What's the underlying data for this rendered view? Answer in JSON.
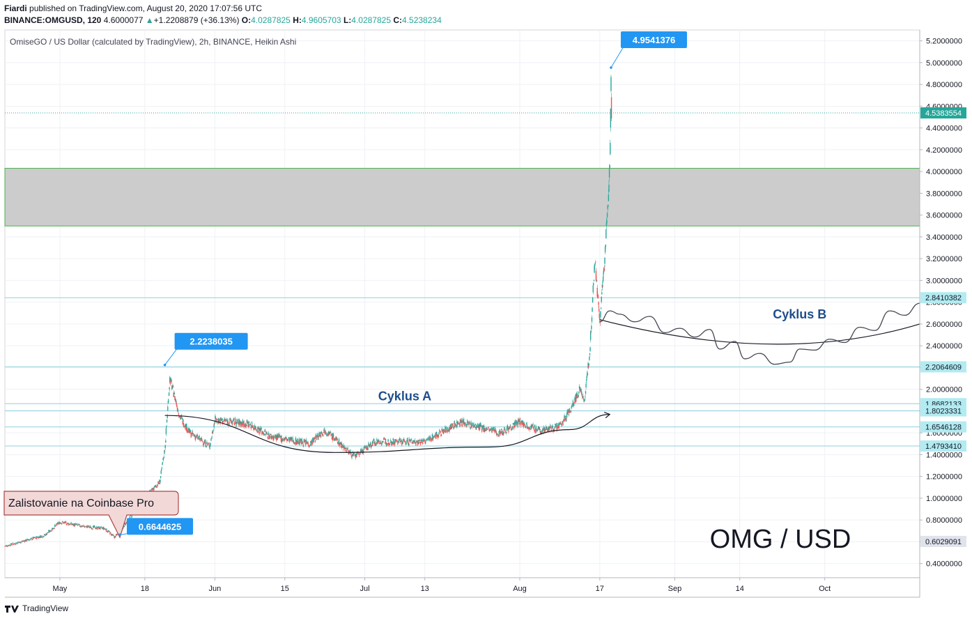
{
  "header": {
    "author": "Fiardi",
    "published_text": "published on TradingView.com, August 20, 2020 17:07:56 UTC",
    "symbol": "BINANCE:OMGUSD, 120",
    "price": "4.6000077",
    "change_arrow": "▲",
    "change": "+1.2208879 (+36.13%)",
    "o_label": "O:",
    "o_value": "4.0287825",
    "h_label": "H:",
    "h_value": "4.9605703",
    "l_label": "L:",
    "l_value": "4.0287825",
    "c_label": "C:",
    "c_value": "4.5238234"
  },
  "footer": {
    "brand": "TradingView"
  },
  "colors": {
    "up": "#26a69a",
    "down": "#ef5350",
    "callout": "#2196f3",
    "last_price": "#26a69a",
    "level_badge": "#b2ebf2",
    "zone": "#cccccc",
    "zone_border": "#4caf50",
    "curve": "#131722"
  },
  "chart_data": {
    "type": "candlestick",
    "title": "OmiseGO / US Dollar (calculated by TradingView), 2h, BINANCE, Heikin Ashi",
    "watermark": "OMG / USD",
    "y_axis": {
      "range": [
        0.27,
        5.3
      ],
      "ticks": [
        "0.4000000",
        "0.6000000",
        "0.8000000",
        "1.0000000",
        "1.2000000",
        "1.4000000",
        "1.6000000",
        "1.8000000",
        "2.0000000",
        "2.2000000",
        "2.4000000",
        "2.6000000",
        "2.8000000",
        "3.0000000",
        "3.2000000",
        "3.4000000",
        "3.6000000",
        "3.8000000",
        "4.0000000",
        "4.2000000",
        "4.4000000",
        "4.6000000",
        "4.8000000",
        "5.0000000",
        "5.2000000"
      ]
    },
    "x_axis": {
      "range": [
        "2020-04-20",
        "2020-10-20"
      ],
      "ticks": [
        {
          "date": "2020-05-01",
          "label": "May"
        },
        {
          "date": "2020-05-18",
          "label": "18"
        },
        {
          "date": "2020-06-01",
          "label": "Jun"
        },
        {
          "date": "2020-06-15",
          "label": "15"
        },
        {
          "date": "2020-07-01",
          "label": "Jul"
        },
        {
          "date": "2020-07-13",
          "label": "13"
        },
        {
          "date": "2020-08-01",
          "label": "Aug"
        },
        {
          "date": "2020-08-17",
          "label": "17"
        },
        {
          "date": "2020-09-01",
          "label": "Sep"
        },
        {
          "date": "2020-09-14",
          "label": "14"
        },
        {
          "date": "2020-10-01",
          "label": "Oct"
        }
      ]
    },
    "price_path": [
      {
        "date": "2020-04-20",
        "value": 0.56
      },
      {
        "date": "2020-04-28",
        "value": 0.66
      },
      {
        "date": "2020-05-01",
        "value": 0.78
      },
      {
        "date": "2020-05-06",
        "value": 0.74
      },
      {
        "date": "2020-05-10",
        "value": 0.72
      },
      {
        "date": "2020-05-12",
        "value": 0.64
      },
      {
        "date": "2020-05-15",
        "value": 0.82
      },
      {
        "date": "2020-05-18",
        "value": 1.0
      },
      {
        "date": "2020-05-21",
        "value": 1.15
      },
      {
        "date": "2020-05-22",
        "value": 1.45
      },
      {
        "date": "2020-05-23",
        "value": 2.1
      },
      {
        "date": "2020-05-25",
        "value": 1.75
      },
      {
        "date": "2020-05-27",
        "value": 1.6
      },
      {
        "date": "2020-05-31",
        "value": 1.48
      },
      {
        "date": "2020-06-01",
        "value": 1.72
      },
      {
        "date": "2020-06-08",
        "value": 1.68
      },
      {
        "date": "2020-06-12",
        "value": 1.57
      },
      {
        "date": "2020-06-20",
        "value": 1.5
      },
      {
        "date": "2020-06-23",
        "value": 1.63
      },
      {
        "date": "2020-06-29",
        "value": 1.38
      },
      {
        "date": "2020-07-03",
        "value": 1.52
      },
      {
        "date": "2020-07-13",
        "value": 1.52
      },
      {
        "date": "2020-07-20",
        "value": 1.7
      },
      {
        "date": "2020-07-28",
        "value": 1.6
      },
      {
        "date": "2020-08-01",
        "value": 1.7
      },
      {
        "date": "2020-08-05",
        "value": 1.62
      },
      {
        "date": "2020-08-09",
        "value": 1.66
      },
      {
        "date": "2020-08-11",
        "value": 1.8
      },
      {
        "date": "2020-08-13",
        "value": 2.0
      },
      {
        "date": "2020-08-14",
        "value": 1.9
      },
      {
        "date": "2020-08-15",
        "value": 2.35
      },
      {
        "date": "2020-08-16",
        "value": 3.2
      },
      {
        "date": "2020-08-17",
        "value": 2.6
      },
      {
        "date": "2020-08-18",
        "value": 3.2
      },
      {
        "date": "2020-08-18T12:00",
        "value": 3.6
      },
      {
        "date": "2020-08-19",
        "value": 4.05
      },
      {
        "date": "2020-08-19T06:00",
        "value": 4.95
      },
      {
        "date": "2020-08-19T08:00",
        "value": 4.54
      }
    ],
    "horizontal_levels": [
      {
        "value": 2.8410382,
        "label": "2.8410382"
      },
      {
        "value": 2.2064609,
        "label": "2.2064609"
      },
      {
        "value": 1.8682133,
        "label": "1.8682133"
      },
      {
        "value": 1.8023331,
        "label": "1.8023331"
      },
      {
        "value": 1.6546128,
        "label": "1.6546128"
      },
      {
        "value": 1.479341,
        "label": "1.4793410"
      }
    ],
    "last_price": {
      "value": 4.5383554,
      "label": "4.5383554"
    },
    "scale_marker": {
      "value": 0.6029091,
      "label": "0.6029091"
    },
    "zone": {
      "from": 3.5,
      "to": 4.03
    },
    "callouts": [
      {
        "date": "2020-05-22",
        "value": 2.2238035,
        "label": "2.2238035"
      },
      {
        "date": "2020-08-19T06:00",
        "value": 4.9541376,
        "label": "4.9541376"
      },
      {
        "date": "2020-05-13",
        "value": 0.6644625,
        "label": "0.6644625"
      }
    ],
    "annotations": [
      {
        "text": "Zalistovanie na Coinbase Pro",
        "date": "2020-05-13",
        "value": 0.64
      },
      {
        "text": "Cyklus A",
        "date": "2020-07-09",
        "value": 1.9
      },
      {
        "text": "Cyklus B",
        "date": "2020-09-26",
        "value": 2.65
      }
    ],
    "cycle_a_curve": [
      {
        "date": "2020-05-22",
        "value": 1.76
      },
      {
        "date": "2020-06-25",
        "value": 1.42
      },
      {
        "date": "2020-07-26",
        "value": 1.47
      },
      {
        "date": "2020-08-11",
        "value": 1.63
      },
      {
        "date": "2020-08-19",
        "value": 1.77
      }
    ],
    "cycle_b_curve": [
      {
        "date": "2020-08-17",
        "value": 2.64
      },
      {
        "date": "2020-09-22",
        "value": 2.21
      },
      {
        "date": "2020-10-20",
        "value": 2.6
      }
    ],
    "cycle_b_projection": [
      {
        "date": "2020-08-17",
        "value": 2.62
      },
      {
        "date": "2020-08-19",
        "value": 2.72
      },
      {
        "date": "2020-08-21",
        "value": 2.69
      },
      {
        "date": "2020-08-24",
        "value": 2.62
      },
      {
        "date": "2020-08-27",
        "value": 2.67
      },
      {
        "date": "2020-08-30",
        "value": 2.52
      },
      {
        "date": "2020-09-02",
        "value": 2.56
      },
      {
        "date": "2020-09-05",
        "value": 2.48
      },
      {
        "date": "2020-09-08",
        "value": 2.55
      },
      {
        "date": "2020-09-10",
        "value": 2.37
      },
      {
        "date": "2020-09-13",
        "value": 2.44
      },
      {
        "date": "2020-09-15",
        "value": 2.28
      },
      {
        "date": "2020-09-18",
        "value": 2.33
      },
      {
        "date": "2020-09-21",
        "value": 2.23
      },
      {
        "date": "2020-09-24",
        "value": 2.25
      },
      {
        "date": "2020-09-26",
        "value": 2.37
      },
      {
        "date": "2020-09-29",
        "value": 2.36
      },
      {
        "date": "2020-10-02",
        "value": 2.46
      },
      {
        "date": "2020-10-05",
        "value": 2.43
      },
      {
        "date": "2020-10-08",
        "value": 2.57
      },
      {
        "date": "2020-10-11",
        "value": 2.54
      },
      {
        "date": "2020-10-14",
        "value": 2.72
      },
      {
        "date": "2020-10-17",
        "value": 2.68
      },
      {
        "date": "2020-10-20",
        "value": 2.79
      }
    ]
  }
}
